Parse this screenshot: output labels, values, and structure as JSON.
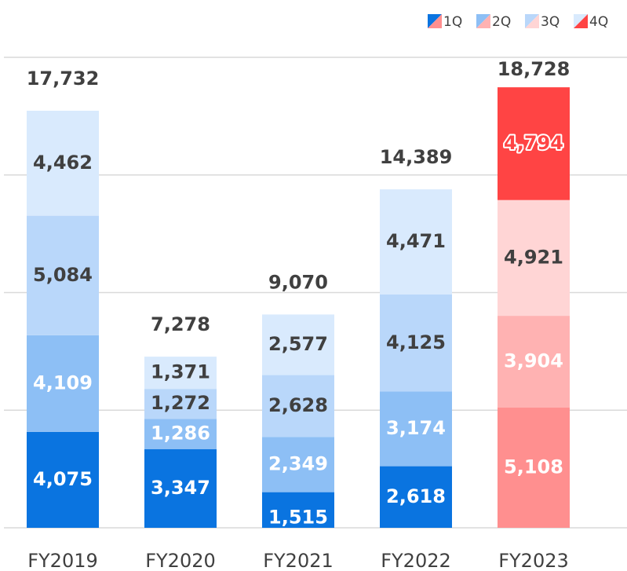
{
  "chart_data": {
    "type": "stacked_bar",
    "categories": [
      "FY2019",
      "FY2020",
      "FY2021",
      "FY2022",
      "FY2023"
    ],
    "series": [
      {
        "name": "1Q",
        "color": "#0a74e0",
        "highlight_color": "#ff8f8f",
        "values": [
          4075,
          3347,
          1515,
          2618,
          5108
        ],
        "value_labels": [
          "4,075",
          "3,347",
          "1,515",
          "2,618",
          "5,108"
        ]
      },
      {
        "name": "2Q",
        "color": "#8dbff5",
        "highlight_color": "#ffb2b2",
        "values": [
          4109,
          1286,
          2349,
          3174,
          3904
        ],
        "value_labels": [
          "4,109",
          "1,286",
          "2,349",
          "3,174",
          "3,904"
        ]
      },
      {
        "name": "3Q",
        "color": "#b9d7fa",
        "highlight_color": "#ffd5d5",
        "values": [
          5084,
          1272,
          2628,
          4125,
          4921
        ],
        "value_labels": [
          "5,084",
          "1,272",
          "2,628",
          "4,125",
          "4,921"
        ]
      },
      {
        "name": "4Q",
        "color": "#d9eafd",
        "highlight_color": "#ff4444",
        "values": [
          4462,
          1371,
          2577,
          4471,
          4794
        ],
        "value_labels": [
          "4,462",
          "1,371",
          "2,577",
          "4,471",
          "4,794"
        ]
      }
    ],
    "totals": [
      17732,
      7278,
      9070,
      14389,
      18728
    ],
    "total_labels": [
      "17,732",
      "7,278",
      "9,070",
      "14,389",
      "18,728"
    ],
    "highlight_category": "FY2023",
    "ylim": [
      0,
      20000
    ],
    "yticks": [
      0,
      5000,
      10000,
      15000,
      20000
    ],
    "grid": true,
    "legend": "top-right"
  }
}
